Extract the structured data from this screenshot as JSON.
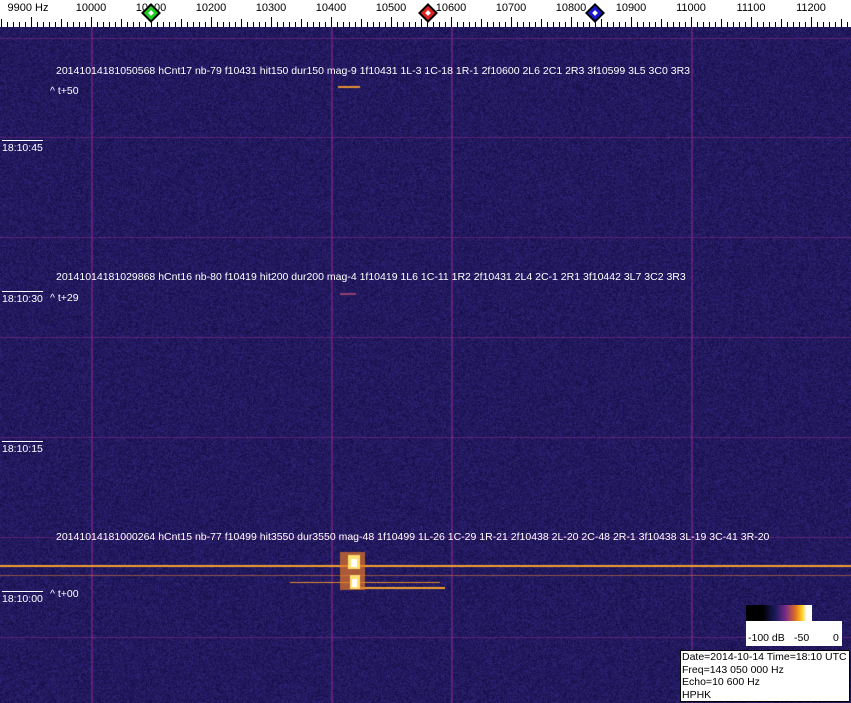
{
  "frequency_axis": {
    "labels": [
      {
        "text": "9900 Hz",
        "hz": 9900
      },
      {
        "text": "10000",
        "hz": 10000
      },
      {
        "text": "10100",
        "hz": 10100
      },
      {
        "text": "10200",
        "hz": 10200
      },
      {
        "text": "10300",
        "hz": 10300
      },
      {
        "text": "10400",
        "hz": 10400
      },
      {
        "text": "10500",
        "hz": 10500
      },
      {
        "text": "10600",
        "hz": 10600
      },
      {
        "text": "10700",
        "hz": 10700
      },
      {
        "text": "10800",
        "hz": 10800
      },
      {
        "text": "10900",
        "hz": 10900
      },
      {
        "text": "11000",
        "hz": 11000
      },
      {
        "text": "11100",
        "hz": 11100
      },
      {
        "text": "11200",
        "hz": 11200
      }
    ],
    "markers": [
      {
        "name": "green-marker",
        "hz": 10100,
        "color": "#22cc22"
      },
      {
        "name": "red-marker",
        "hz": 10561,
        "color": "#dd2222"
      },
      {
        "name": "blue-marker",
        "hz": 10840,
        "color": "#1a1acc"
      }
    ]
  },
  "colors": {
    "background": "#1e1a5c",
    "grid": "#7a2a80",
    "trace": "#ffb030"
  },
  "detections": [
    {
      "line": "20141014181050568 hCnt17 nb-79 f10431 hit150 dur150 mag-9 1f10431 1L-3 1C-18 1R-1 2f10600 2L6 2C1 2R3 3f10599 3L5 3C0 3R3",
      "offset": "^ t+50"
    },
    {
      "line": "20141014181029868 hCnt16 nb-80 f10419 hit200 dur200 mag-4 1f10419 1L6 1C-11 1R2 2f10431 2L4 2C-1 2R1 3f10442 3L7 3C2 3R3",
      "offset": "^ t+29"
    },
    {
      "line": "20141014181000264 hCnt15 nb-77 f10499 hit3550 dur3550 mag-48 1f10499 1L-26 1C-29 1R-21 2f10438 2L-20 2C-48 2R-1 3f10438 3L-19 3C-41 3R-20",
      "offset": "^ t+00"
    }
  ],
  "time_labels": [
    "18:10:45",
    "18:10:30",
    "18:10:15",
    "18:10:00"
  ],
  "colorbar": {
    "labels": [
      "-100 dB",
      "-50",
      "0"
    ]
  },
  "info": {
    "date_time": "Date=2014-10-14 Time=18:10 UTC",
    "freq": "Freq=143 050 000 Hz",
    "echo": "Echo=10 600 Hz",
    "station": "HPHK"
  }
}
